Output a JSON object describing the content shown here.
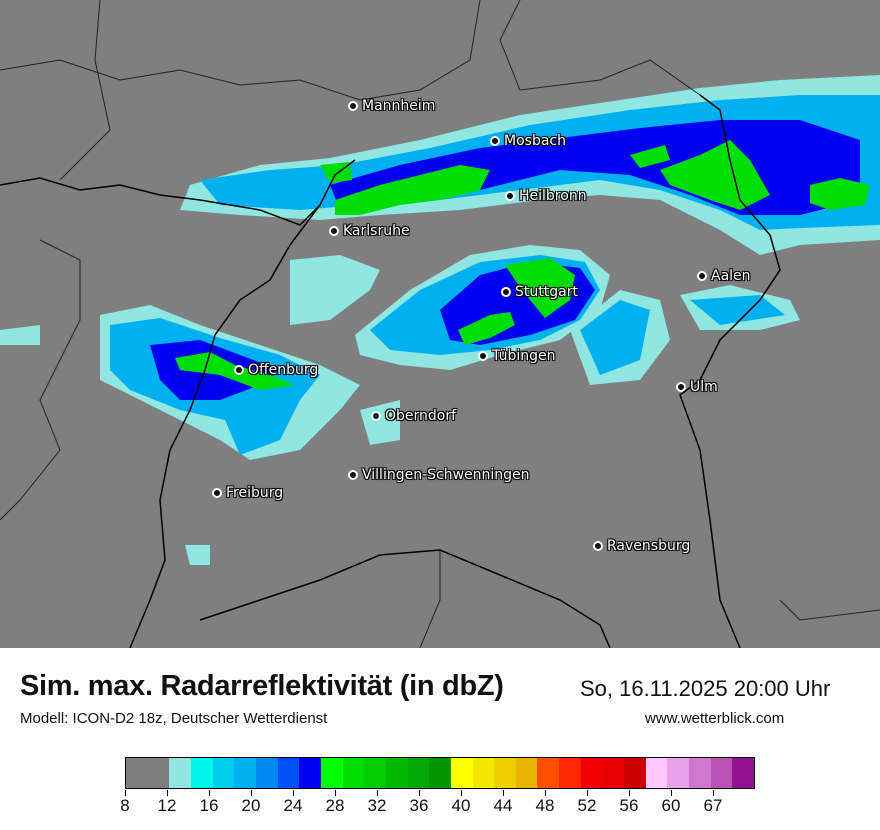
{
  "map": {
    "background_color": "#7f7f7f",
    "cities": [
      {
        "name": "Mannheim"
      },
      {
        "name": "Mosbach"
      },
      {
        "name": "Heilbronn"
      },
      {
        "name": "Karlsruhe"
      },
      {
        "name": "Aalen"
      },
      {
        "name": "Stuttgart"
      },
      {
        "name": "Tübingen"
      },
      {
        "name": "Offenburg"
      },
      {
        "name": "Ulm"
      },
      {
        "name": "Oberndorf"
      },
      {
        "name": "Villingen-Schwenningen"
      },
      {
        "name": "Freiburg"
      },
      {
        "name": "Ravensburg"
      }
    ]
  },
  "header": {
    "title": "Sim. max. Radarreflektivität (in dbZ)",
    "subtitle": "Modell: ICON-D2 18z, Deutscher Wetterdienst",
    "datetime": "So, 16.11.2025 20:00 Uhr",
    "website": "www.wetterblick.com"
  },
  "legend": {
    "colors": [
      "#7f7f7f",
      "#7f7f7f",
      "#90e6e0",
      "#00f5ea",
      "#00ccee",
      "#00b0f0",
      "#0088f0",
      "#0050f8",
      "#0000f0",
      "#00ff00",
      "#00dd00",
      "#00cc00",
      "#00b800",
      "#00a800",
      "#009400",
      "#ffff00",
      "#f5e800",
      "#eed000",
      "#e8b400",
      "#ff5000",
      "#ff2800",
      "#f00000",
      "#e80000",
      "#cc0000",
      "#ffc8ff",
      "#e8a0e8",
      "#d078d0",
      "#b850b8",
      "#901090"
    ],
    "tick_labels": [
      "8",
      "12",
      "16",
      "20",
      "24",
      "28",
      "32",
      "36",
      "40",
      "44",
      "48",
      "52",
      "56",
      "60",
      "67"
    ]
  }
}
